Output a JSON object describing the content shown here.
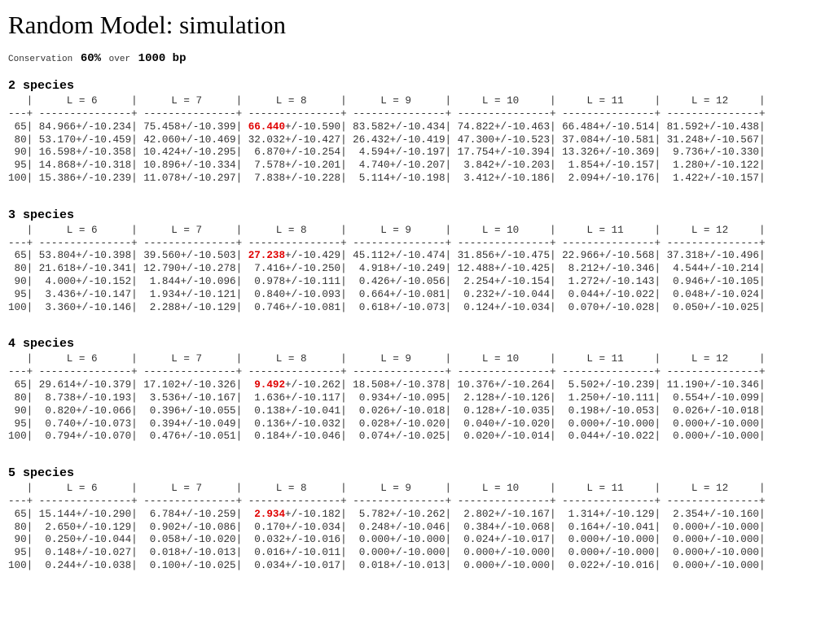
{
  "title": "Random Model: simulation",
  "subtitle": {
    "label1": "Conservation",
    "conservation": "60%",
    "label2": "over",
    "length": "1000 bp"
  },
  "divider": "|",
  "rule": "---+ ---------------+ ---------------+ ---------------+ ---------------+ ---------------+ ---------------+ ---------------+",
  "columns": [
    "L = 6",
    "L = 7",
    "L = 8",
    "L = 9",
    "L = 10",
    "L = 11",
    "L = 12"
  ],
  "sections": [
    {
      "title": "2 species",
      "rows": [
        {
          "label": "65",
          "cells": [
            "84.966+/-10.234",
            "75.458+/-10.399",
            {
              "best": "66.440",
              "rest": "+/-10.590"
            },
            "83.582+/-10.434",
            "74.822+/-10.463",
            "66.484+/-10.514",
            "81.592+/-10.438"
          ]
        },
        {
          "label": "80",
          "cells": [
            "53.170+/-10.459",
            "42.060+/-10.469",
            "32.032+/-10.427",
            "26.432+/-10.419",
            "47.300+/-10.523",
            "37.084+/-10.581",
            "31.248+/-10.567"
          ]
        },
        {
          "label": "90",
          "cells": [
            "16.598+/-10.358",
            "10.424+/-10.295",
            "6.870+/-10.254",
            "4.594+/-10.197",
            "17.754+/-10.394",
            "13.326+/-10.369",
            "9.736+/-10.330"
          ]
        },
        {
          "label": "95",
          "cells": [
            "14.868+/-10.318",
            "10.896+/-10.334",
            "7.578+/-10.201",
            "4.740+/-10.207",
            "3.842+/-10.203",
            "1.854+/-10.157",
            "1.280+/-10.122"
          ]
        },
        {
          "label": "100",
          "cells": [
            "15.386+/-10.239",
            "11.078+/-10.297",
            "7.838+/-10.228",
            "5.114+/-10.198",
            "3.412+/-10.186",
            "2.094+/-10.176",
            "1.422+/-10.157"
          ]
        }
      ]
    },
    {
      "title": "3 species",
      "rows": [
        {
          "label": "65",
          "cells": [
            "53.804+/-10.398",
            "39.560+/-10.503",
            {
              "best": "27.238",
              "rest": "+/-10.429"
            },
            "45.112+/-10.474",
            "31.856+/-10.475",
            "22.966+/-10.568",
            "37.318+/-10.496"
          ]
        },
        {
          "label": "80",
          "cells": [
            "21.618+/-10.341",
            "12.790+/-10.278",
            "7.416+/-10.250",
            "4.918+/-10.249",
            "12.488+/-10.425",
            "8.212+/-10.346",
            "4.544+/-10.214"
          ]
        },
        {
          "label": "90",
          "cells": [
            "4.000+/-10.152",
            "1.844+/-10.096",
            "0.978+/-10.111",
            "0.426+/-10.056",
            "2.254+/-10.154",
            "1.272+/-10.143",
            "0.946+/-10.105"
          ]
        },
        {
          "label": "95",
          "cells": [
            "3.436+/-10.147",
            "1.934+/-10.121",
            "0.840+/-10.093",
            "0.664+/-10.081",
            "0.232+/-10.044",
            "0.044+/-10.022",
            "0.048+/-10.024"
          ]
        },
        {
          "label": "100",
          "cells": [
            "3.360+/-10.146",
            "2.288+/-10.129",
            "0.746+/-10.081",
            "0.618+/-10.073",
            "0.124+/-10.034",
            "0.070+/-10.028",
            "0.050+/-10.025"
          ]
        }
      ]
    },
    {
      "title": "4 species",
      "rows": [
        {
          "label": "65",
          "cells": [
            "29.614+/-10.379",
            "17.102+/-10.326",
            {
              "best": "9.492",
              "rest": "+/-10.262"
            },
            "18.508+/-10.378",
            "10.376+/-10.264",
            "5.502+/-10.239",
            "11.190+/-10.346"
          ]
        },
        {
          "label": "80",
          "cells": [
            "8.738+/-10.193",
            "3.536+/-10.167",
            "1.636+/-10.117",
            "0.934+/-10.095",
            "2.128+/-10.126",
            "1.250+/-10.111",
            "0.554+/-10.099"
          ]
        },
        {
          "label": "90",
          "cells": [
            "0.820+/-10.066",
            "0.396+/-10.055",
            "0.138+/-10.041",
            "0.026+/-10.018",
            "0.128+/-10.035",
            "0.198+/-10.053",
            "0.026+/-10.018"
          ]
        },
        {
          "label": "95",
          "cells": [
            "0.740+/-10.073",
            "0.394+/-10.049",
            "0.136+/-10.032",
            "0.028+/-10.020",
            "0.040+/-10.020",
            "0.000+/-10.000",
            "0.000+/-10.000"
          ]
        },
        {
          "label": "100",
          "cells": [
            "0.794+/-10.070",
            "0.476+/-10.051",
            "0.184+/-10.046",
            "0.074+/-10.025",
            "0.020+/-10.014",
            "0.044+/-10.022",
            "0.000+/-10.000"
          ]
        }
      ]
    },
    {
      "title": "5 species",
      "rows": [
        {
          "label": "65",
          "cells": [
            "15.144+/-10.290",
            "6.784+/-10.259",
            {
              "best": "2.934",
              "rest": "+/-10.182"
            },
            "5.782+/-10.262",
            "2.802+/-10.167",
            "1.314+/-10.129",
            "2.354+/-10.160"
          ]
        },
        {
          "label": "80",
          "cells": [
            "2.650+/-10.129",
            "0.902+/-10.086",
            "0.170+/-10.034",
            "0.248+/-10.046",
            "0.384+/-10.068",
            "0.164+/-10.041",
            "0.000+/-10.000"
          ]
        },
        {
          "label": "90",
          "cells": [
            "0.250+/-10.044",
            "0.058+/-10.020",
            "0.032+/-10.016",
            "0.000+/-10.000",
            "0.024+/-10.017",
            "0.000+/-10.000",
            "0.000+/-10.000"
          ]
        },
        {
          "label": "95",
          "cells": [
            "0.148+/-10.027",
            "0.018+/-10.013",
            "0.016+/-10.011",
            "0.000+/-10.000",
            "0.000+/-10.000",
            "0.000+/-10.000",
            "0.000+/-10.000"
          ]
        },
        {
          "label": "100",
          "cells": [
            "0.244+/-10.038",
            "0.100+/-10.025",
            "0.034+/-10.017",
            "0.018+/-10.013",
            "0.000+/-10.000",
            "0.022+/-10.016",
            "0.000+/-10.000"
          ]
        }
      ]
    }
  ]
}
